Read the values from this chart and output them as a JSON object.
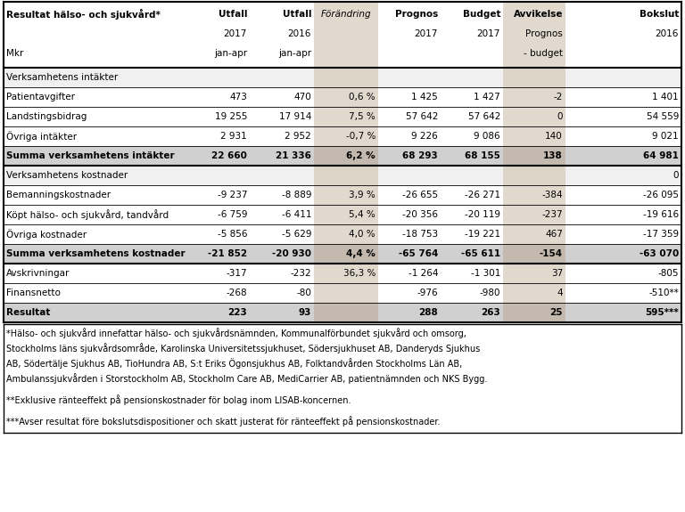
{
  "title": "Resultat hälso- och sjukvård*",
  "rows": [
    {
      "label": "Verksamhetens intäkter",
      "values": [
        "",
        "",
        "",
        "",
        "",
        "",
        ""
      ],
      "type": "section_header"
    },
    {
      "label": "Patientavgifter",
      "values": [
        "473",
        "470",
        "0,6 %",
        "1 425",
        "1 427",
        "-2",
        "1 401"
      ],
      "type": "normal"
    },
    {
      "label": "Landstingsbidrag",
      "values": [
        "19 255",
        "17 914",
        "7,5 %",
        "57 642",
        "57 642",
        "0",
        "54 559"
      ],
      "type": "normal"
    },
    {
      "label": "Övriga intäkter",
      "values": [
        "2 931",
        "2 952",
        "-0,7 %",
        "9 226",
        "9 086",
        "140",
        "9 021"
      ],
      "type": "normal"
    },
    {
      "label": "Summa verksamhetens intäkter",
      "values": [
        "22 660",
        "21 336",
        "6,2 %",
        "68 293",
        "68 155",
        "138",
        "64 981"
      ],
      "type": "sum"
    },
    {
      "label": "Verksamhetens kostnader",
      "values": [
        "",
        "",
        "",
        "",
        "",
        "",
        "0"
      ],
      "type": "section_header"
    },
    {
      "label": "Bemanningskostnader",
      "values": [
        "-9 237",
        "-8 889",
        "3,9 %",
        "-26 655",
        "-26 271",
        "-384",
        "-26 095"
      ],
      "type": "normal"
    },
    {
      "label": "Köpt hälso- och sjukvård, tandvård",
      "values": [
        "-6 759",
        "-6 411",
        "5,4 %",
        "-20 356",
        "-20 119",
        "-237",
        "-19 616"
      ],
      "type": "normal"
    },
    {
      "label": "Övriga kostnader",
      "values": [
        "-5 856",
        "-5 629",
        "4,0 %",
        "-18 753",
        "-19 221",
        "467",
        "-17 359"
      ],
      "type": "normal"
    },
    {
      "label": "Summa verksamhetens kostnader",
      "values": [
        "-21 852",
        "-20 930",
        "4,4 %",
        "-65 764",
        "-65 611",
        "-154",
        "-63 070"
      ],
      "type": "sum"
    },
    {
      "label": "Avskrivningar",
      "values": [
        "-317",
        "-232",
        "36,3 %",
        "-1 264",
        "-1 301",
        "37",
        "-805"
      ],
      "type": "normal"
    },
    {
      "label": "Finansnetto",
      "values": [
        "-268",
        "-80",
        "",
        "-976",
        "-980",
        "4",
        "-510**"
      ],
      "type": "normal"
    },
    {
      "label": "Resultat",
      "values": [
        "223",
        "93",
        "",
        "288",
        "263",
        "25",
        "595***"
      ],
      "type": "sum"
    }
  ],
  "footnotes": [
    "*Hälso- och sjukvård innefattar hälso- och sjukvårdsnämnden, Kommunalförbundet sjukvård och omsorg,",
    "Stockholms läns sjukvårdsområde, Karolinska Universitetssjukhuset, Södersjukhuset AB, Danderyds Sjukhus",
    "AB, Södertälje Sjukhus AB, TioHundra AB, S:t Eriks Ögonsjukhus AB, Folktandvården Stockholms Län AB,",
    "Ambulanssjukvården i Storstockholm AB, Stockholm Care AB, MediCarrier AB, patientnämnden och NKS Bygg.",
    "",
    "**Exklusive ränteeffekt på pensionskostnader för bolag inom LISAB-koncernen.",
    "",
    "***Avser resultat före bokslutsdispositioner och skatt justerat för ränteeffekt på pensionskostnader."
  ],
  "bg_forändring": "#e2d9ce",
  "bg_avvikelse": "#e2d9ce",
  "bg_section": "#f0f0f0",
  "bg_sum": "#d0d0d0",
  "bg_white": "#ffffff"
}
